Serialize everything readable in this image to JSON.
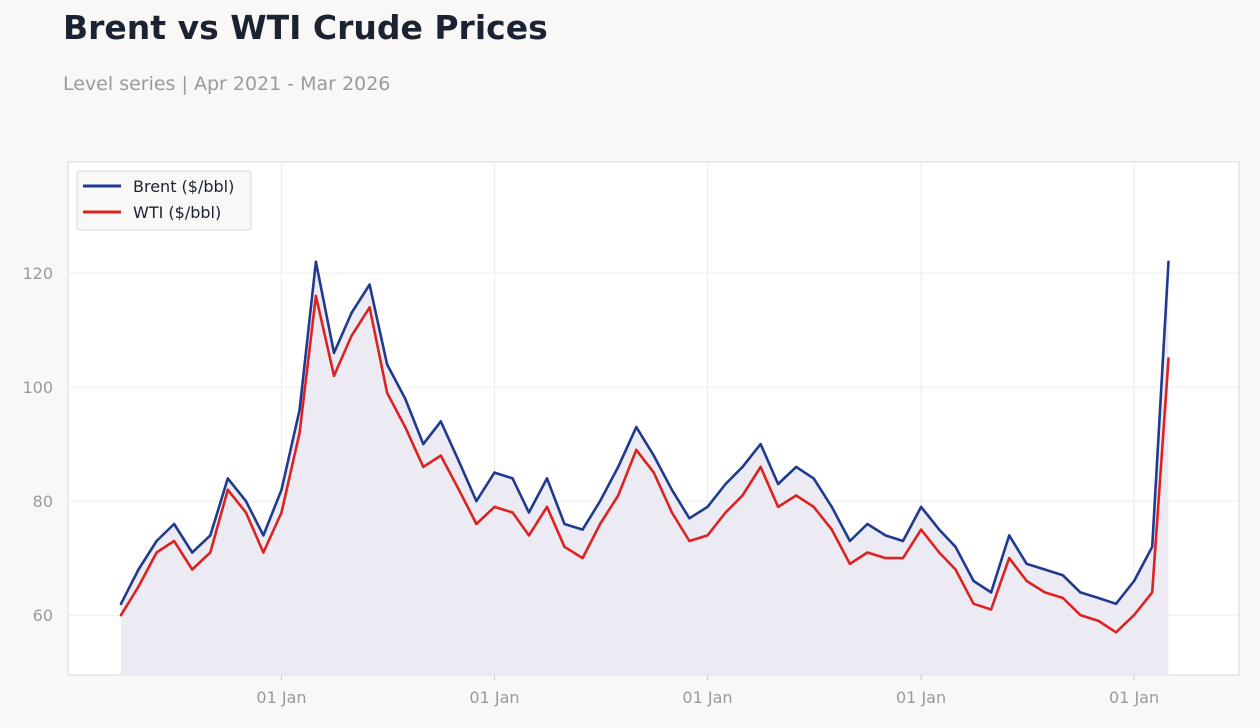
{
  "header": {
    "title": "Brent vs WTI Crude Prices",
    "subtitle": "Level series | Apr 2021 - Mar 2026"
  },
  "colors": {
    "background": "#f9f8f6",
    "brent": "#1f3a8f",
    "wti": "#dd2222",
    "area_fill": "#ecebf3",
    "grid": "#ececec",
    "axis_text": "#9a9a9a"
  },
  "chart_data": {
    "type": "line",
    "title": "Brent vs WTI Crude Prices",
    "subtitle": "Level series | Apr 2021 - Mar 2026",
    "xlabel": "",
    "ylabel": "",
    "x_ticks": [
      "01 Jan",
      "01 Jan",
      "01 Jan",
      "01 Jan",
      "01 Jan"
    ],
    "x_tick_dates": [
      "2022-01-01",
      "2023-01-01",
      "2024-01-01",
      "2025-01-01",
      "2026-01-01"
    ],
    "y_ticks": [
      60,
      80,
      100,
      120
    ],
    "xlim": [
      "2021-04-01",
      "2026-03-31"
    ],
    "ylim": [
      49.5,
      139.5
    ],
    "grid": true,
    "legend": "top-left",
    "area_under": "Brent ($/bbl)",
    "series": [
      {
        "name": "Brent ($/bbl)",
        "x": [
          "2021-04-01",
          "2021-05-01",
          "2021-06-01",
          "2021-07-01",
          "2021-08-01",
          "2021-09-01",
          "2021-10-01",
          "2021-11-01",
          "2021-12-01",
          "2022-01-01",
          "2022-02-01",
          "2022-03-01",
          "2022-04-01",
          "2022-05-01",
          "2022-06-01",
          "2022-07-01",
          "2022-08-01",
          "2022-09-01",
          "2022-10-01",
          "2022-11-01",
          "2022-12-01",
          "2023-01-01",
          "2023-02-01",
          "2023-03-01",
          "2023-04-01",
          "2023-05-01",
          "2023-06-01",
          "2023-07-01",
          "2023-08-01",
          "2023-09-01",
          "2023-10-01",
          "2023-11-01",
          "2023-12-01",
          "2024-01-01",
          "2024-02-01",
          "2024-03-01",
          "2024-04-01",
          "2024-05-01",
          "2024-06-01",
          "2024-07-01",
          "2024-08-01",
          "2024-09-01",
          "2024-10-01",
          "2024-11-01",
          "2024-12-01",
          "2025-01-01",
          "2025-02-01",
          "2025-03-01",
          "2025-04-01",
          "2025-05-01",
          "2025-06-01",
          "2025-07-01",
          "2025-08-01",
          "2025-09-01",
          "2025-10-01",
          "2025-11-01",
          "2025-12-01",
          "2026-01-01",
          "2026-02-01",
          "2026-03-01"
        ],
        "values": [
          62,
          68,
          73,
          76,
          71,
          74,
          84,
          80,
          74,
          82,
          96,
          122,
          106,
          113,
          118,
          104,
          98,
          90,
          94,
          87,
          80,
          85,
          84,
          78,
          84,
          76,
          75,
          80,
          86,
          93,
          88,
          82,
          77,
          79,
          83,
          86,
          90,
          83,
          86,
          84,
          79,
          73,
          76,
          74,
          73,
          79,
          75,
          72,
          66,
          64,
          74,
          69,
          68,
          67,
          64,
          63,
          62,
          66,
          72,
          122
        ]
      },
      {
        "name": "WTI ($/bbl)",
        "x": [
          "2021-04-01",
          "2021-05-01",
          "2021-06-01",
          "2021-07-01",
          "2021-08-01",
          "2021-09-01",
          "2021-10-01",
          "2021-11-01",
          "2021-12-01",
          "2022-01-01",
          "2022-02-01",
          "2022-03-01",
          "2022-04-01",
          "2022-05-01",
          "2022-06-01",
          "2022-07-01",
          "2022-08-01",
          "2022-09-01",
          "2022-10-01",
          "2022-11-01",
          "2022-12-01",
          "2023-01-01",
          "2023-02-01",
          "2023-03-01",
          "2023-04-01",
          "2023-05-01",
          "2023-06-01",
          "2023-07-01",
          "2023-08-01",
          "2023-09-01",
          "2023-10-01",
          "2023-11-01",
          "2023-12-01",
          "2024-01-01",
          "2024-02-01",
          "2024-03-01",
          "2024-04-01",
          "2024-05-01",
          "2024-06-01",
          "2024-07-01",
          "2024-08-01",
          "2024-09-01",
          "2024-10-01",
          "2024-11-01",
          "2024-12-01",
          "2025-01-01",
          "2025-02-01",
          "2025-03-01",
          "2025-04-01",
          "2025-05-01",
          "2025-06-01",
          "2025-07-01",
          "2025-08-01",
          "2025-09-01",
          "2025-10-01",
          "2025-11-01",
          "2025-12-01",
          "2026-01-01",
          "2026-02-01",
          "2026-03-01"
        ],
        "values": [
          60,
          65,
          71,
          73,
          68,
          71,
          82,
          78,
          71,
          78,
          92,
          116,
          102,
          109,
          114,
          99,
          93,
          86,
          88,
          82,
          76,
          79,
          78,
          74,
          79,
          72,
          70,
          76,
          81,
          89,
          85,
          78,
          73,
          74,
          78,
          81,
          86,
          79,
          81,
          79,
          75,
          69,
          71,
          70,
          70,
          75,
          71,
          68,
          62,
          61,
          70,
          66,
          64,
          63,
          60,
          59,
          57,
          60,
          64,
          105
        ]
      }
    ]
  }
}
